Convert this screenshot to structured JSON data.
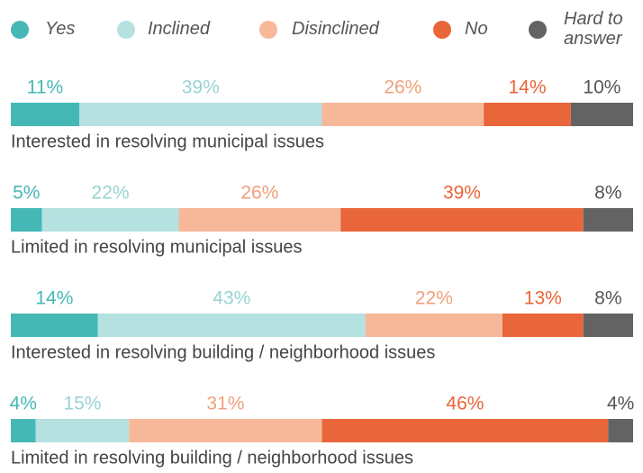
{
  "chart_data": {
    "type": "stacked-bar-horizontal",
    "categories": [
      "Interested in resolving municipal issues",
      "Limited in resolving municipal issues",
      "Interested in resolving building / neighborhood issues",
      "Limited in resolving building / neighborhood issues"
    ],
    "xlim": [
      0,
      100
    ],
    "series": [
      {
        "name": "Yes",
        "color": "#45b8b6",
        "label_color": "#45b8b6",
        "values": [
          11,
          5,
          14,
          4
        ],
        "value_labels": [
          "11%",
          "5%",
          "14%",
          "4%"
        ]
      },
      {
        "name": "Inclined",
        "color": "#b5e1e0",
        "label_color": "#98d3d2",
        "values": [
          39,
          22,
          43,
          15
        ],
        "value_labels": [
          "39%",
          "22%",
          "43%",
          "15%"
        ]
      },
      {
        "name": "Disinclined",
        "color": "#f7b89a",
        "label_color": "#f0a07c",
        "values": [
          26,
          26,
          22,
          31
        ],
        "value_labels": [
          "26%",
          "26%",
          "22%",
          "31%"
        ]
      },
      {
        "name": "No",
        "color": "#e9653a",
        "label_color": "#e9653a",
        "values": [
          14,
          39,
          13,
          46
        ],
        "value_labels": [
          "14%",
          "39%",
          "13%",
          "46%"
        ]
      },
      {
        "name": "Hard to answer",
        "color": "#636363",
        "label_color": "#555555",
        "values": [
          10,
          8,
          8,
          4
        ],
        "value_labels": [
          "10%",
          "8%",
          "8%",
          "4%"
        ]
      }
    ]
  }
}
